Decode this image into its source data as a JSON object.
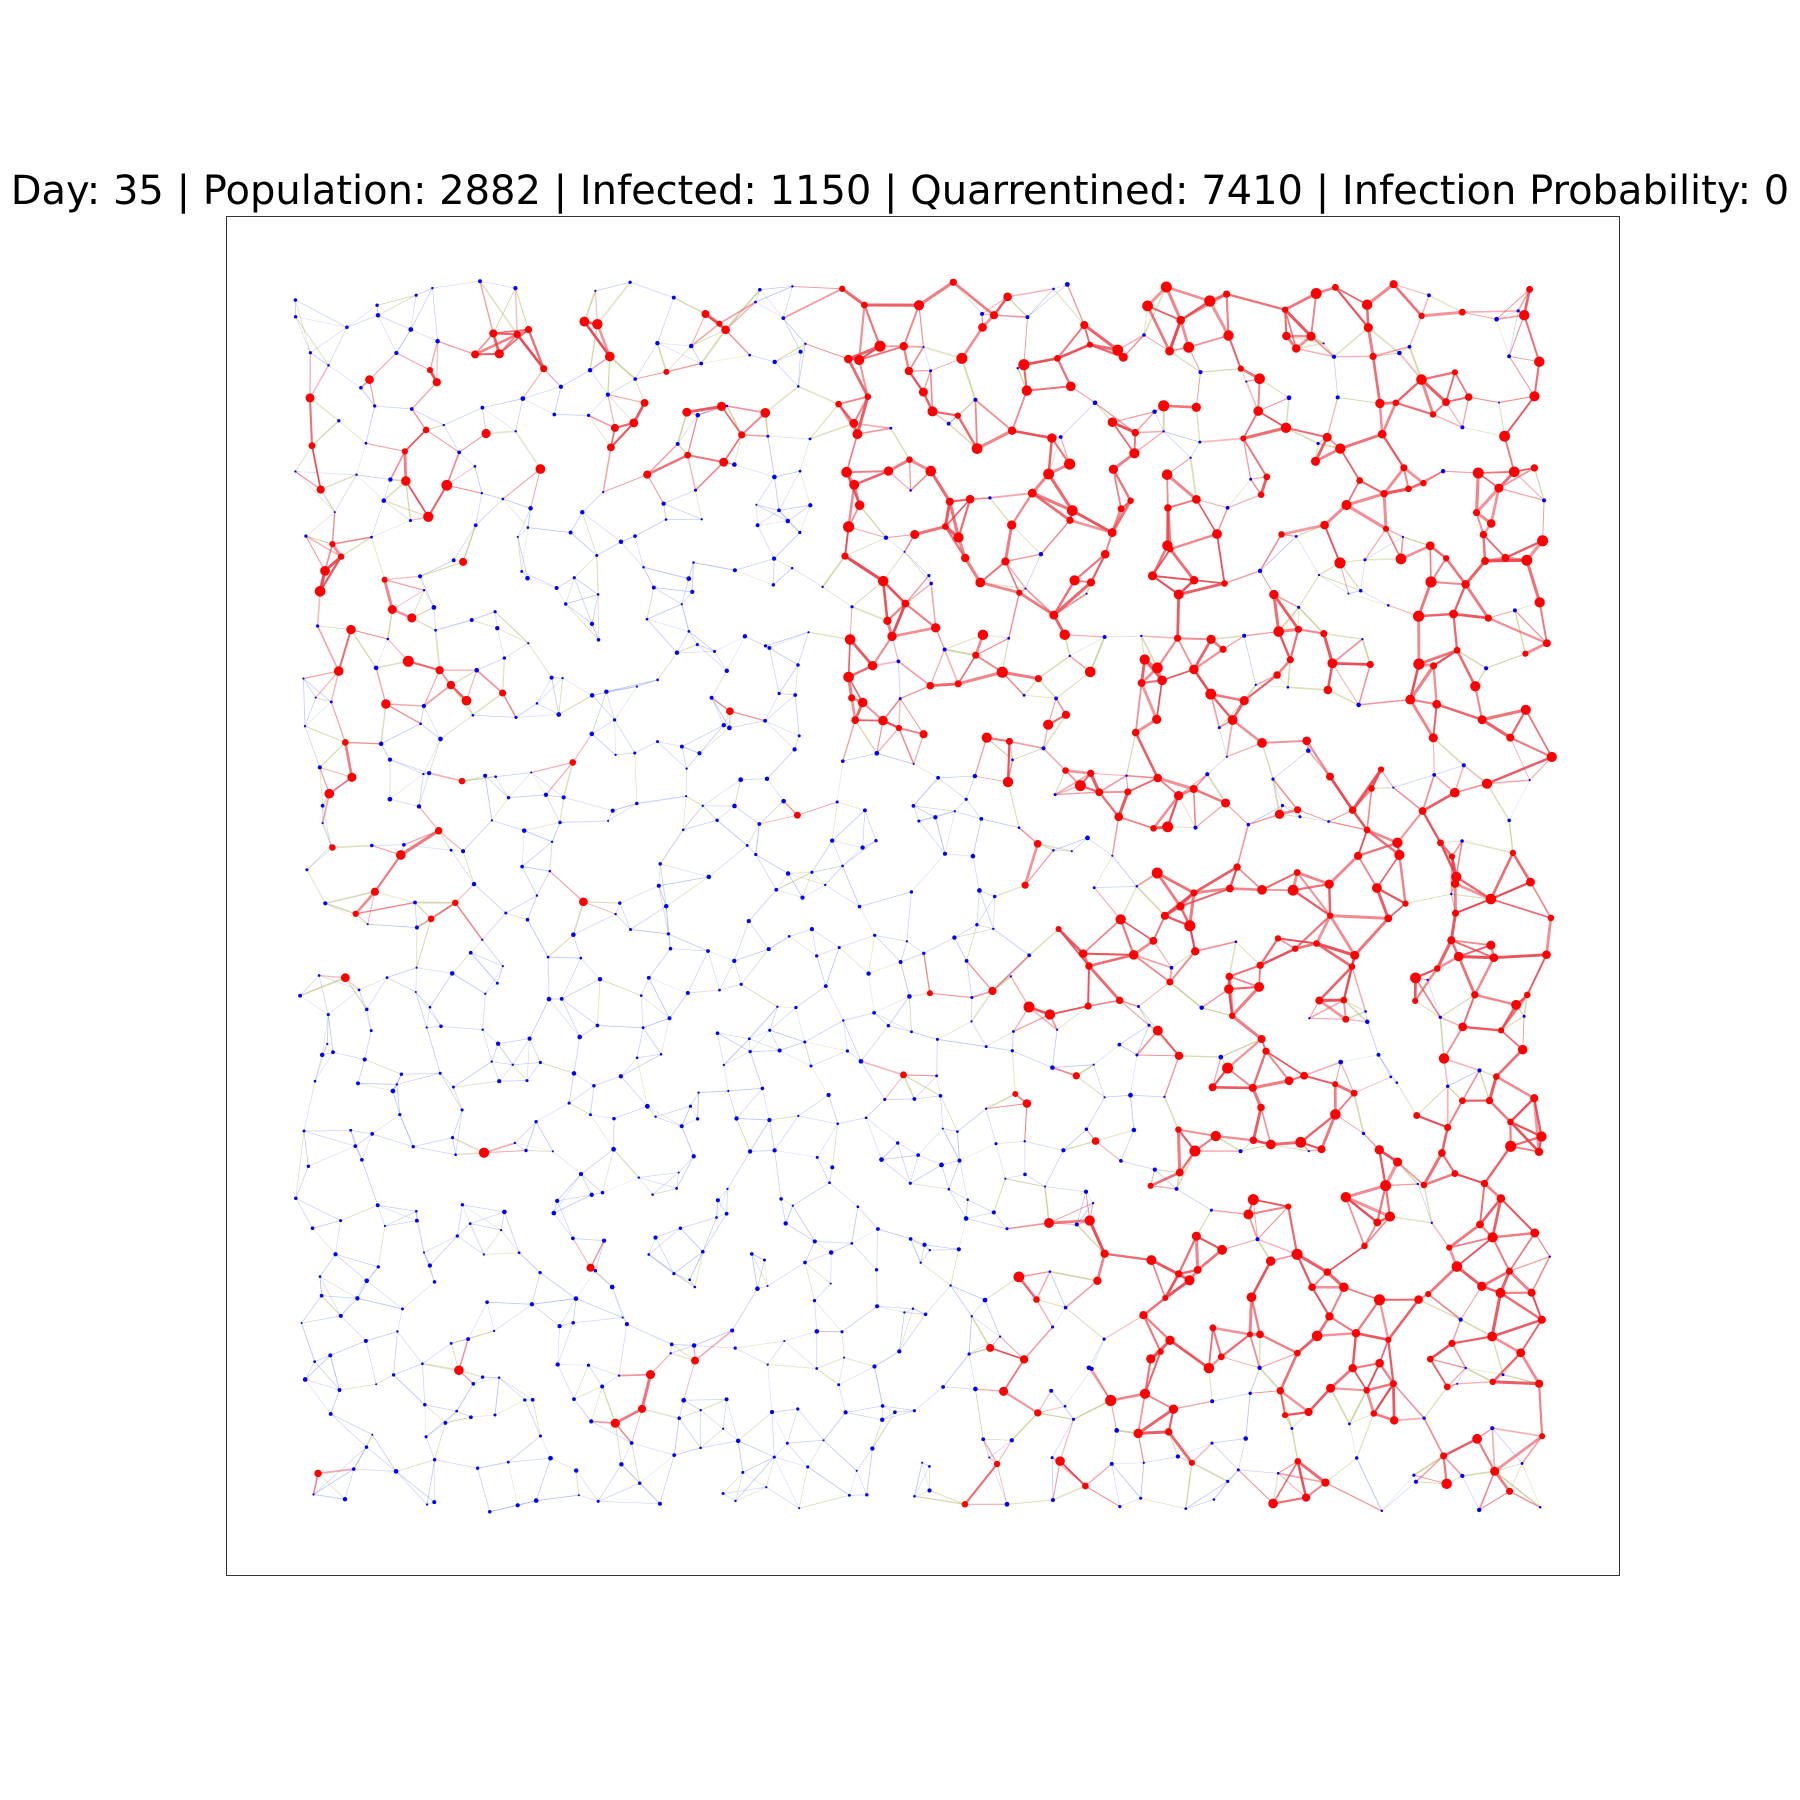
{
  "title": "Day: 35 | Population: 2882 | Infected: 1150 | Quarrentined: 7410 | Infection Probability: 0",
  "stats": {
    "day": 35,
    "population": 2882,
    "infected": 1150,
    "quarantined": 7410,
    "infection_probability": 0
  },
  "colors": {
    "infected_node": "#ff0000",
    "healthy_node": "#0000ff",
    "infected_edge": "#e8414b",
    "healthy_edge": "#8fa0f0",
    "mixed_edge": "#b5b86a",
    "frame": "#333333"
  },
  "legend": "none",
  "axes": "hidden"
}
